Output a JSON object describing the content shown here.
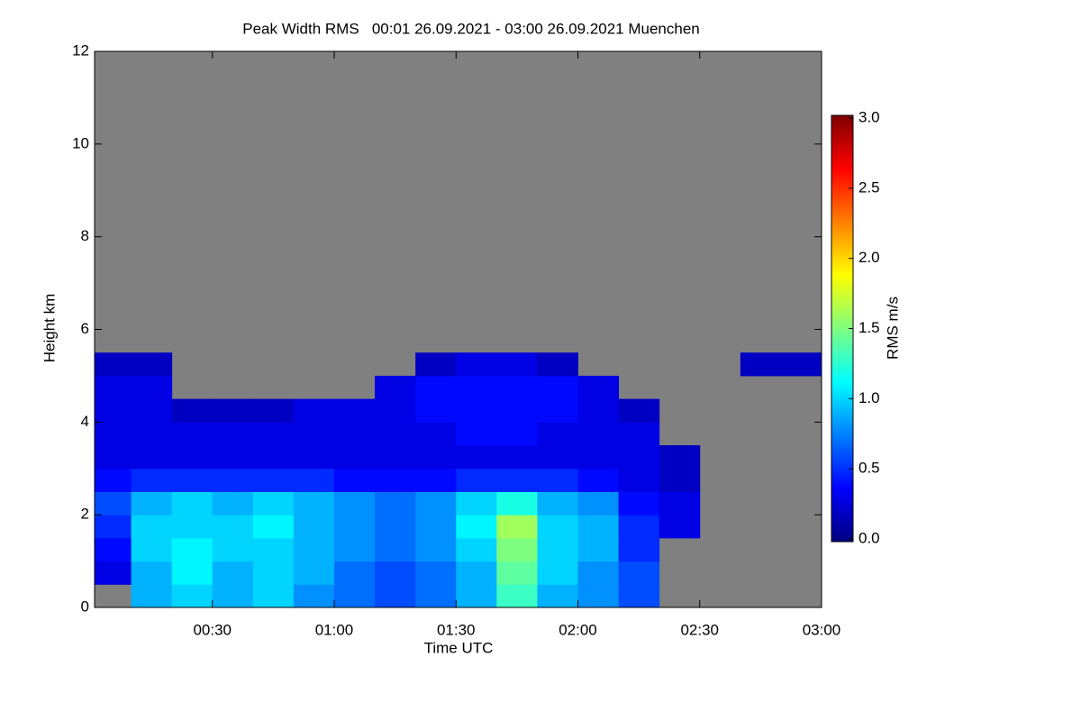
{
  "chart_data": {
    "type": "heatmap",
    "title": "Peak Width RMS   00:01 26.09.2021 - 03:00 26.09.2021 Muenchen",
    "x_label": "Time UTC",
    "y_label": "Height km",
    "colorbar_label": "RMS m/s",
    "xlim": [
      1,
      180
    ],
    "xticks": [
      {
        "value": 30,
        "label": "00:30"
      },
      {
        "value": 60,
        "label": "01:00"
      },
      {
        "value": 90,
        "label": "01:30"
      },
      {
        "value": 120,
        "label": "02:00"
      },
      {
        "value": 150,
        "label": "02:30"
      },
      {
        "value": 180,
        "label": "03:00"
      }
    ],
    "ylim": [
      0,
      12
    ],
    "yticks": [
      0,
      2,
      4,
      6,
      8,
      10,
      12
    ],
    "zlim": [
      0,
      3
    ],
    "zticks": [
      {
        "value": 0,
        "label": "0.0"
      },
      0.5,
      {
        "value": 1,
        "label": "1.0"
      },
      1.5,
      {
        "value": 2,
        "label": "2.0"
      },
      2.5,
      {
        "value": 3,
        "label": "3.0"
      }
    ],
    "colorscale": [
      "#00007f",
      "#0000ff",
      "#007fff",
      "#00ffff",
      "#7fff7f",
      "#ffff00",
      "#ff7f00",
      "#ff0000",
      "#7f0000"
    ],
    "missing_color": "#808080",
    "x_bins": [
      1,
      10,
      20,
      30,
      40,
      50,
      60,
      70,
      80,
      90,
      100,
      110,
      120,
      130,
      140,
      150,
      160,
      170,
      180
    ],
    "y_bins": [
      0,
      0.5,
      1,
      1.5,
      2,
      2.5,
      3,
      3.5,
      4,
      4.5,
      5,
      5.5,
      6
    ],
    "z": [
      [
        null,
        0.9,
        1.0,
        0.9,
        1.0,
        0.8,
        0.7,
        0.6,
        0.7,
        0.9,
        1.3,
        0.9,
        0.8,
        0.6,
        null,
        null,
        null,
        null
      ],
      [
        0.3,
        0.9,
        1.1,
        0.9,
        1.0,
        0.9,
        0.7,
        0.6,
        0.7,
        0.9,
        1.4,
        1.0,
        0.8,
        0.6,
        null,
        null,
        null,
        null
      ],
      [
        0.4,
        1.0,
        1.1,
        1.0,
        1.0,
        0.9,
        0.8,
        0.7,
        0.8,
        1.0,
        1.5,
        1.0,
        0.9,
        0.5,
        null,
        null,
        null,
        null
      ],
      [
        0.5,
        1.0,
        1.0,
        1.0,
        1.1,
        0.9,
        0.8,
        0.7,
        0.8,
        1.1,
        1.6,
        1.0,
        0.9,
        0.5,
        0.3,
        null,
        null,
        null
      ],
      [
        0.6,
        0.9,
        1.0,
        0.9,
        1.0,
        0.9,
        0.8,
        0.7,
        0.8,
        1.0,
        1.2,
        0.9,
        0.8,
        0.4,
        0.3,
        null,
        null,
        null
      ],
      [
        0.4,
        0.5,
        0.5,
        0.5,
        0.5,
        0.5,
        0.4,
        0.4,
        0.4,
        0.5,
        0.5,
        0.5,
        0.4,
        0.3,
        0.2,
        null,
        null,
        null
      ],
      [
        0.3,
        0.3,
        0.3,
        0.3,
        0.3,
        0.3,
        0.3,
        0.3,
        0.3,
        0.3,
        0.3,
        0.3,
        0.3,
        0.3,
        0.2,
        null,
        null,
        null
      ],
      [
        0.3,
        0.3,
        0.3,
        0.3,
        0.3,
        0.3,
        0.3,
        0.3,
        0.3,
        0.4,
        0.4,
        0.3,
        0.3,
        0.3,
        null,
        null,
        null,
        null
      ],
      [
        0.3,
        0.3,
        0.2,
        0.2,
        0.2,
        0.3,
        0.3,
        0.3,
        0.4,
        0.4,
        0.4,
        0.4,
        0.3,
        0.2,
        null,
        null,
        null,
        null
      ],
      [
        0.3,
        0.3,
        null,
        null,
        null,
        null,
        null,
        0.3,
        0.4,
        0.4,
        0.4,
        0.4,
        0.3,
        null,
        null,
        null,
        null,
        null
      ],
      [
        0.2,
        0.2,
        null,
        null,
        null,
        null,
        null,
        null,
        0.2,
        0.3,
        0.3,
        0.2,
        null,
        null,
        null,
        null,
        0.2,
        0.2
      ],
      [
        null,
        null,
        null,
        null,
        null,
        null,
        null,
        null,
        null,
        null,
        null,
        null,
        null,
        null,
        null,
        null,
        null,
        null
      ]
    ]
  }
}
